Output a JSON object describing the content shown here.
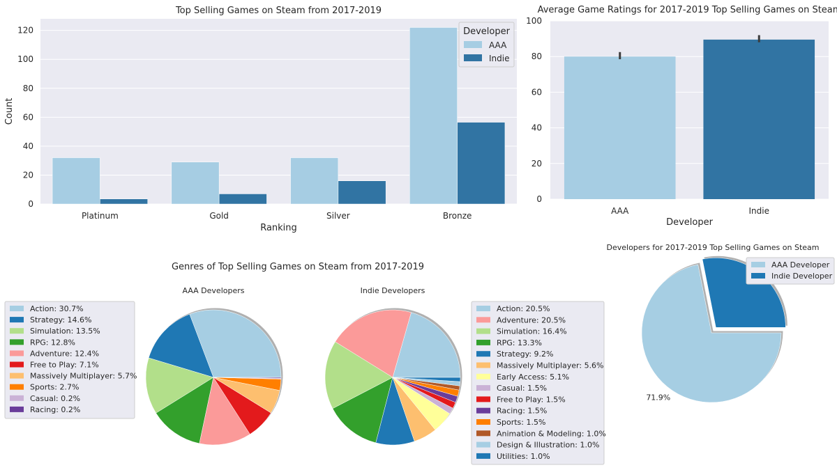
{
  "chart_data": [
    {
      "id": "ranking",
      "type": "bar",
      "title": "Top Selling Games on Steam from 2017-2019",
      "xlabel": "Ranking",
      "ylabel": "Count",
      "categories": [
        "Platinum",
        "Gold",
        "Silver",
        "Bronze"
      ],
      "series": [
        {
          "name": "AAA",
          "values": [
            32,
            29,
            32,
            122
          ],
          "color": "#a6cde3"
        },
        {
          "name": "Indie",
          "values": [
            3.5,
            7,
            16,
            56.5
          ],
          "color": "#3174a3"
        }
      ],
      "ylim": [
        0,
        128
      ],
      "yticks": [
        0,
        20,
        40,
        60,
        80,
        100,
        120
      ],
      "grid": true,
      "legend": {
        "title": "Developer",
        "placement": "upper right"
      }
    },
    {
      "id": "ratings",
      "type": "bar",
      "title": "Average Game Ratings for 2017-2019 Top Selling Games on Steam",
      "xlabel": "Developer",
      "ylabel": "",
      "categories": [
        "AAA",
        "Indie"
      ],
      "values": [
        80,
        89.5
      ],
      "error_low": [
        78.5,
        88
      ],
      "error_high": [
        82.5,
        92
      ],
      "colors": [
        "#a6cde3",
        "#3174a3"
      ],
      "ylim": [
        0,
        100
      ],
      "yticks": [
        0,
        20,
        40,
        60,
        80,
        100
      ],
      "grid": true
    },
    {
      "id": "aaa_genres",
      "type": "pie",
      "suptitle": "Genres of Top Selling Games on Steam from 2017-2019",
      "title": "AAA Developers",
      "slices": [
        {
          "label": "Action",
          "value": 30.7,
          "legend": "Action: 30.7%",
          "color": "#a6cee3"
        },
        {
          "label": "Strategy",
          "value": 14.6,
          "legend": "Strategy: 14.6%",
          "color": "#1f78b4"
        },
        {
          "label": "Simulation",
          "value": 13.5,
          "legend": "Simulation: 13.5%",
          "color": "#b2df8a"
        },
        {
          "label": "RPG",
          "value": 12.8,
          "legend": "RPG: 12.8%",
          "color": "#33a02c"
        },
        {
          "label": "Adventure",
          "value": 12.4,
          "legend": "Adventure: 12.4%",
          "color": "#fb9a99"
        },
        {
          "label": "Free to Play",
          "value": 7.1,
          "legend": "Free to Play: 7.1%",
          "color": "#e31a1c"
        },
        {
          "label": "Massively Multiplayer",
          "value": 5.7,
          "legend": "Massively Multiplayer: 5.7%",
          "color": "#fdbf6f"
        },
        {
          "label": "Sports",
          "value": 2.7,
          "legend": "Sports: 2.7%",
          "color": "#ff7f00"
        },
        {
          "label": "Casual",
          "value": 0.2,
          "legend": "Casual: 0.2%",
          "color": "#cab2d6"
        },
        {
          "label": "Racing",
          "value": 0.2,
          "legend": "Racing: 0.2%",
          "color": "#6a3d9a"
        }
      ]
    },
    {
      "id": "indie_genres",
      "type": "pie",
      "title": "Indie Developers",
      "slices": [
        {
          "label": "Action",
          "value": 20.5,
          "legend": "Action: 20.5%",
          "color": "#a6cee3"
        },
        {
          "label": "Adventure",
          "value": 20.5,
          "legend": "Adventure: 20.5%",
          "color": "#fb9a99"
        },
        {
          "label": "Simulation",
          "value": 16.4,
          "legend": "Simulation: 16.4%",
          "color": "#b2df8a"
        },
        {
          "label": "RPG",
          "value": 13.3,
          "legend": "RPG: 13.3%",
          "color": "#33a02c"
        },
        {
          "label": "Strategy",
          "value": 9.2,
          "legend": "Strategy: 9.2%",
          "color": "#1f78b4"
        },
        {
          "label": "Massively Multiplayer",
          "value": 5.6,
          "legend": "Massively Multiplayer: 5.6%",
          "color": "#fdbf6f"
        },
        {
          "label": "Early Access",
          "value": 5.1,
          "legend": "Early Access: 5.1%",
          "color": "#ffff99"
        },
        {
          "label": "Casual",
          "value": 1.5,
          "legend": "Casual: 1.5%",
          "color": "#cab2d6"
        },
        {
          "label": "Free to Play",
          "value": 1.5,
          "legend": "Free to Play: 1.5%",
          "color": "#e31a1c"
        },
        {
          "label": "Racing",
          "value": 1.5,
          "legend": "Racing: 1.5%",
          "color": "#6a3d9a"
        },
        {
          "label": "Sports",
          "value": 1.5,
          "legend": "Sports: 1.5%",
          "color": "#ff7f00"
        },
        {
          "label": "Animation & Modeling",
          "value": 1.0,
          "legend": "Animation & Modeling: 1.0%",
          "color": "#b15928"
        },
        {
          "label": "Design & Illustration",
          "value": 1.0,
          "legend": "Design & Illustration: 1.0%",
          "color": "#a6cee3"
        },
        {
          "label": "Utilities",
          "value": 1.0,
          "legend": "Utilities: 1.0%",
          "color": "#1f78b4"
        }
      ]
    },
    {
      "id": "developers",
      "type": "pie",
      "title": "Developers for 2017-2019 Top Selling Games on Steam",
      "slices": [
        {
          "label": "AAA Developer",
          "value": 71.9,
          "pct_text": "71.9%",
          "color": "#a6cee3",
          "explode": false
        },
        {
          "label": "Indie Developer",
          "value": 28.1,
          "pct_text": "28.1%",
          "color": "#1f78b4",
          "explode": true
        }
      ]
    }
  ]
}
